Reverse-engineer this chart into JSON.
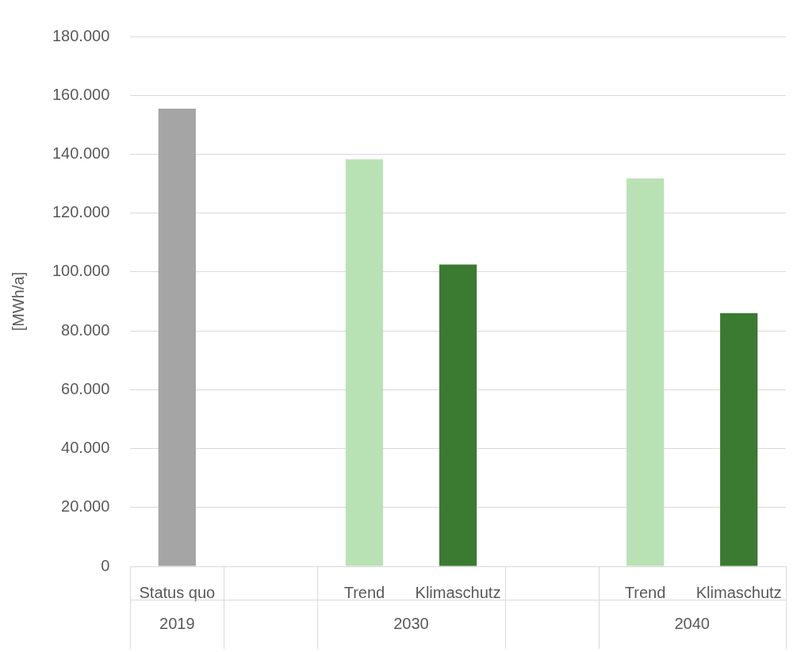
{
  "chart_data": {
    "type": "bar",
    "ylabel": "[MWh/a]",
    "categories": [
      "Status quo",
      null,
      "Trend",
      "Klimaschutz",
      null,
      "Trend",
      "Klimaschutz"
    ],
    "values": [
      155500,
      null,
      138300,
      102500,
      null,
      131800,
      86000
    ],
    "colors": [
      "#a5a5a5",
      "#a5a5a5",
      "#b9e2b4",
      "#3b7a31",
      "#a5a5a5",
      "#b9e2b4",
      "#3b7a31"
    ],
    "ylim": [
      0,
      180000
    ],
    "yticks": [
      0,
      {
        "value": 20000,
        "label": "20.000"
      },
      {
        "value": 40000,
        "label": "40.000"
      },
      {
        "value": 60000,
        "label": "60.000"
      },
      {
        "value": 80000,
        "label": "80.000"
      },
      {
        "value": 100000,
        "label": "100.000"
      },
      {
        "value": 120000,
        "label": "120.000"
      },
      {
        "value": 140000,
        "label": "140.000"
      },
      {
        "value": 160000,
        "label": "160.000"
      },
      {
        "value": 180000,
        "label": "180.000"
      }
    ],
    "annotations": [
      "2019",
      "2030",
      "2040"
    ],
    "grid": "y",
    "legend": false
  }
}
